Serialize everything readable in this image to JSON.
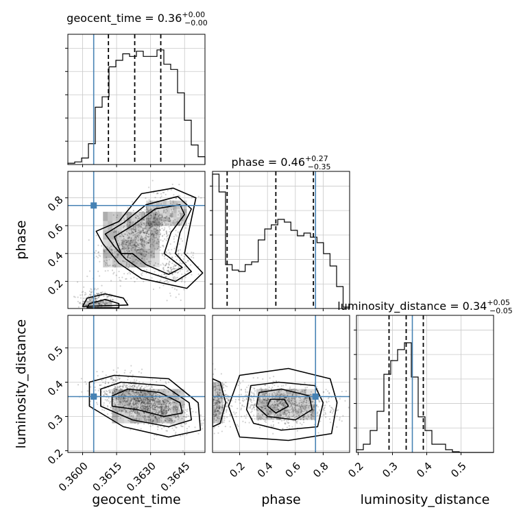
{
  "chart_data": {
    "type": "corner",
    "parameters": [
      "geocent_time",
      "phase",
      "luminosity_distance"
    ],
    "truths": {
      "geocent_time": 0.36049,
      "phase": 0.745,
      "luminosity_distance": 0.358
    },
    "truth_color": "#4682b4",
    "titles": [
      {
        "param": "geocent_time",
        "text": "geocent_time = 0.36",
        "plus": "+0.00",
        "minus": "−0.00"
      },
      {
        "param": "phase",
        "text": "phase = 0.46",
        "plus": "+0.27",
        "minus": "−0.35"
      },
      {
        "param": "luminosity_distance",
        "text": "luminosity_distance = 0.34",
        "plus": "+0.05",
        "minus": "−0.05"
      }
    ],
    "axis_labels": {
      "x": [
        "geocent_time",
        "phase",
        "luminosity_distance"
      ],
      "y": [
        "phase",
        "luminosity_distance"
      ]
    },
    "ranges": {
      "geocent_time": [
        0.35935,
        0.3654
      ],
      "phase": [
        0.005,
        0.99
      ],
      "luminosity_distance": [
        0.195,
        0.595
      ]
    },
    "ticks": {
      "geocent_time": {
        "values": [
          0.36,
          0.3615,
          0.363,
          0.3645
        ],
        "labels": [
          "0.3600",
          "0.3615",
          "0.3630",
          "0.3645"
        ]
      },
      "phase": {
        "values": [
          0.2,
          0.4,
          0.6,
          0.8
        ],
        "labels": [
          "0.2",
          "0.4",
          "0.6",
          "0.8"
        ]
      },
      "luminosity_distance": {
        "values": [
          0.2,
          0.3,
          0.4,
          0.5
        ],
        "labels": [
          "0.2",
          "0.3",
          "0.4",
          "0.5"
        ]
      }
    },
    "quantiles": {
      "geocent_time": [
        0.36114,
        0.3623,
        0.36345
      ],
      "phase": [
        0.11,
        0.46,
        0.73
      ],
      "luminosity_distance": [
        0.29,
        0.34,
        0.39
      ]
    },
    "histograms": {
      "geocent_time": [
        0.01,
        0.02,
        0.05,
        0.16,
        0.44,
        0.52,
        0.75,
        0.8,
        0.85,
        0.83,
        0.87,
        0.83,
        0.83,
        0.88,
        0.77,
        0.73,
        0.55,
        0.34,
        0.15,
        0.06
      ],
      "phase": [
        0.98,
        0.85,
        0.32,
        0.28,
        0.27,
        0.32,
        0.34,
        0.5,
        0.58,
        0.61,
        0.65,
        0.63,
        0.57,
        0.53,
        0.55,
        0.52,
        0.48,
        0.4,
        0.31,
        0.16,
        0.01
      ],
      "luminosity_distance": [
        0.02,
        0.06,
        0.16,
        0.3,
        0.57,
        0.67,
        0.75,
        0.8,
        0.55,
        0.26,
        0.16,
        0.06,
        0.06,
        0.02,
        0.005,
        0.0,
        0.0,
        0.0,
        0.0,
        0.0
      ]
    },
    "grid": true,
    "legend": "none"
  }
}
